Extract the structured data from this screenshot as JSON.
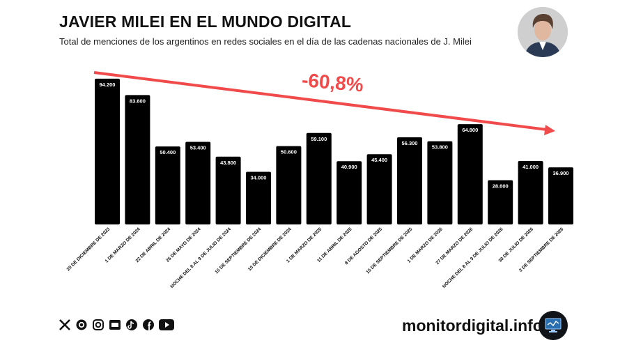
{
  "header": {
    "title": "JAVIER MILEI EN EL MUNDO DIGITAL",
    "subtitle": "Total de menciones de los argentinos en redes sociales en el día de las cadenas nacionales de J. Milei"
  },
  "chart_data": {
    "type": "bar",
    "categories": [
      "20 DE DICIEMBRE DE 2023",
      "1 DE MARZO DE 2024",
      "22 DE ABRIL DE 2024",
      "25 DE MAYO DE 2024",
      "NOCHE DEL 8 AL 9 DE JULIO DE 2024",
      "15 DE SEPTIEMBRE DE 2024",
      "10 DE DICIEMBRE DE 2024",
      "1 DE MARZO DE 2025",
      "11 DE ABRIL DE 2025",
      "8 DE AGOSTO DE 2025",
      "15 DE SEPTIEMBRE DE 2025",
      "1 DE MARZO DE 2026",
      "27 DE MARZO DE 2026",
      "NOCHE DEL 8 AL 9 DE JULIO DE 2026",
      "30 DE JULIO DE 2026",
      "3 DE SEPTIEMBRE DE 2026"
    ],
    "values": [
      94200,
      83600,
      50400,
      53400,
      43800,
      34000,
      50600,
      59100,
      40900,
      45400,
      56300,
      53800,
      64800,
      28600,
      41000,
      36900
    ],
    "value_labels": [
      "94.200",
      "83.600",
      "50.400",
      "53.400",
      "43.800",
      "34.000",
      "50.600",
      "59.100",
      "40.900",
      "45.400",
      "56.300",
      "53.800",
      "64.800",
      "28.600",
      "41.000",
      "36.900"
    ],
    "annotation": "-60,8%",
    "ylim": [
      0,
      100000
    ],
    "bar_color": "#000000",
    "annotation_color": "#f04a4a"
  },
  "footer": {
    "site": "monitordigital.info",
    "social_icons": [
      "x-icon",
      "threads-icon",
      "instagram-icon",
      "kick-icon",
      "tiktok-icon",
      "facebook-icon",
      "youtube-icon"
    ]
  }
}
